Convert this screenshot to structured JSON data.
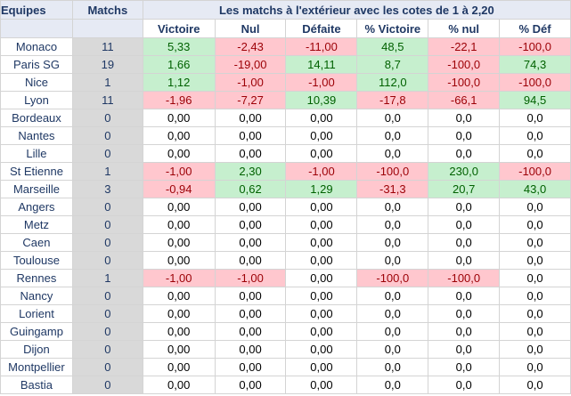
{
  "headers": {
    "team": "Equipes",
    "matchs": "Matchs",
    "title": "Les matchs à l'extérieur avec les cotes de 1 à 2,20",
    "columns": [
      "Victoire",
      "Nul",
      "Défaite",
      "% Victoire",
      "% nul",
      "% Déf"
    ]
  },
  "rows": [
    {
      "team": "Monaco",
      "matchs": "11",
      "vals": [
        "5,33",
        "-2,43",
        "-11,00",
        "48,5",
        "-22,1",
        "-100,0"
      ],
      "status": [
        "pos",
        "neg",
        "neg",
        "pos",
        "neg",
        "neg"
      ]
    },
    {
      "team": "Paris SG",
      "matchs": "19",
      "vals": [
        "1,66",
        "-19,00",
        "14,11",
        "8,7",
        "-100,0",
        "74,3"
      ],
      "status": [
        "pos",
        "neg",
        "pos",
        "pos",
        "neg",
        "pos"
      ]
    },
    {
      "team": "Nice",
      "matchs": "1",
      "vals": [
        "1,12",
        "-1,00",
        "-1,00",
        "112,0",
        "-100,0",
        "-100,0"
      ],
      "status": [
        "pos",
        "neg",
        "neg",
        "pos",
        "neg",
        "neg"
      ]
    },
    {
      "team": "Lyon",
      "matchs": "11",
      "vals": [
        "-1,96",
        "-7,27",
        "10,39",
        "-17,8",
        "-66,1",
        "94,5"
      ],
      "status": [
        "neg",
        "neg",
        "pos",
        "neg",
        "neg",
        "pos"
      ]
    },
    {
      "team": "Bordeaux",
      "matchs": "0",
      "vals": [
        "0,00",
        "0,00",
        "0,00",
        "0,0",
        "0,0",
        "0,0"
      ],
      "status": [
        "zero",
        "zero",
        "zero",
        "zero",
        "zero",
        "zero"
      ]
    },
    {
      "team": "Nantes",
      "matchs": "0",
      "vals": [
        "0,00",
        "0,00",
        "0,00",
        "0,0",
        "0,0",
        "0,0"
      ],
      "status": [
        "zero",
        "zero",
        "zero",
        "zero",
        "zero",
        "zero"
      ]
    },
    {
      "team": "Lille",
      "matchs": "0",
      "vals": [
        "0,00",
        "0,00",
        "0,00",
        "0,0",
        "0,0",
        "0,0"
      ],
      "status": [
        "zero",
        "zero",
        "zero",
        "zero",
        "zero",
        "zero"
      ]
    },
    {
      "team": "St Etienne",
      "matchs": "1",
      "vals": [
        "-1,00",
        "2,30",
        "-1,00",
        "-100,0",
        "230,0",
        "-100,0"
      ],
      "status": [
        "neg",
        "pos",
        "neg",
        "neg",
        "pos",
        "neg"
      ]
    },
    {
      "team": "Marseille",
      "matchs": "3",
      "vals": [
        "-0,94",
        "0,62",
        "1,29",
        "-31,3",
        "20,7",
        "43,0"
      ],
      "status": [
        "neg",
        "pos",
        "pos",
        "neg",
        "pos",
        "pos"
      ]
    },
    {
      "team": "Angers",
      "matchs": "0",
      "vals": [
        "0,00",
        "0,00",
        "0,00",
        "0,0",
        "0,0",
        "0,0"
      ],
      "status": [
        "zero",
        "zero",
        "zero",
        "zero",
        "zero",
        "zero"
      ]
    },
    {
      "team": "Metz",
      "matchs": "0",
      "vals": [
        "0,00",
        "0,00",
        "0,00",
        "0,0",
        "0,0",
        "0,0"
      ],
      "status": [
        "zero",
        "zero",
        "zero",
        "zero",
        "zero",
        "zero"
      ]
    },
    {
      "team": "Caen",
      "matchs": "0",
      "vals": [
        "0,00",
        "0,00",
        "0,00",
        "0,0",
        "0,0",
        "0,0"
      ],
      "status": [
        "zero",
        "zero",
        "zero",
        "zero",
        "zero",
        "zero"
      ]
    },
    {
      "team": "Toulouse",
      "matchs": "0",
      "vals": [
        "0,00",
        "0,00",
        "0,00",
        "0,0",
        "0,0",
        "0,0"
      ],
      "status": [
        "zero",
        "zero",
        "zero",
        "zero",
        "zero",
        "zero"
      ]
    },
    {
      "team": "Rennes",
      "matchs": "1",
      "vals": [
        "-1,00",
        "-1,00",
        "0,00",
        "-100,0",
        "-100,0",
        "0,0"
      ],
      "status": [
        "neg",
        "neg",
        "zero",
        "neg",
        "neg",
        "zero"
      ]
    },
    {
      "team": "Nancy",
      "matchs": "0",
      "vals": [
        "0,00",
        "0,00",
        "0,00",
        "0,0",
        "0,0",
        "0,0"
      ],
      "status": [
        "zero",
        "zero",
        "zero",
        "zero",
        "zero",
        "zero"
      ]
    },
    {
      "team": "Lorient",
      "matchs": "0",
      "vals": [
        "0,00",
        "0,00",
        "0,00",
        "0,0",
        "0,0",
        "0,0"
      ],
      "status": [
        "zero",
        "zero",
        "zero",
        "zero",
        "zero",
        "zero"
      ]
    },
    {
      "team": "Guingamp",
      "matchs": "0",
      "vals": [
        "0,00",
        "0,00",
        "0,00",
        "0,0",
        "0,0",
        "0,0"
      ],
      "status": [
        "zero",
        "zero",
        "zero",
        "zero",
        "zero",
        "zero"
      ]
    },
    {
      "team": "Dijon",
      "matchs": "0",
      "vals": [
        "0,00",
        "0,00",
        "0,00",
        "0,0",
        "0,0",
        "0,0"
      ],
      "status": [
        "zero",
        "zero",
        "zero",
        "zero",
        "zero",
        "zero"
      ]
    },
    {
      "team": "Montpellier",
      "matchs": "0",
      "vals": [
        "0,00",
        "0,00",
        "0,00",
        "0,0",
        "0,0",
        "0,0"
      ],
      "status": [
        "zero",
        "zero",
        "zero",
        "zero",
        "zero",
        "zero"
      ]
    },
    {
      "team": "Bastia",
      "matchs": "0",
      "vals": [
        "0,00",
        "0,00",
        "0,00",
        "0,0",
        "0,0",
        "0,0"
      ],
      "status": [
        "zero",
        "zero",
        "zero",
        "zero",
        "zero",
        "zero"
      ]
    }
  ],
  "colors": {
    "positive_fill": "#c6efce",
    "positive_text": "#006100",
    "negative_fill": "#ffc7ce",
    "negative_text": "#9c0006",
    "header_text": "#1f3864",
    "matchs_fill": "#d9d9d9"
  }
}
